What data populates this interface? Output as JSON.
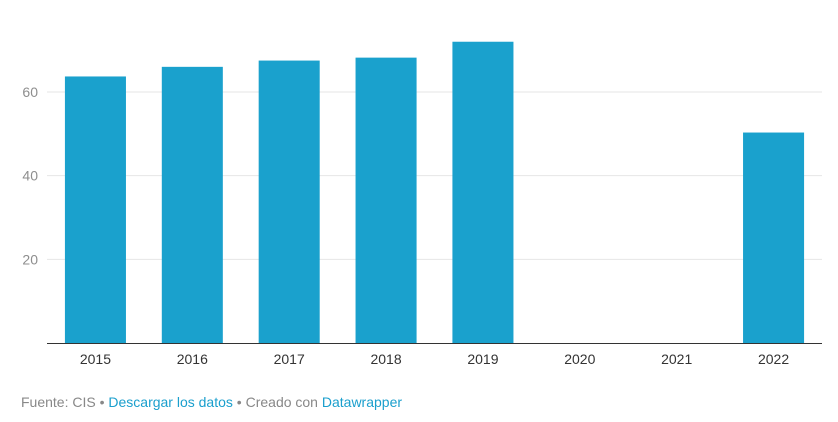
{
  "chart_data": {
    "type": "bar",
    "categories": [
      "2015",
      "2016",
      "2017",
      "2018",
      "2019",
      "2020",
      "2021",
      "2022"
    ],
    "values": [
      63.7,
      66.0,
      67.5,
      68.2,
      72.0,
      null,
      null,
      50.3
    ],
    "title": "",
    "xlabel": "",
    "ylabel": "",
    "ylim": [
      0,
      76
    ],
    "yticks": [
      20,
      40,
      60
    ],
    "grid": true,
    "bar_color": "#1aa1cd"
  },
  "footer": {
    "source": "Fuente: CIS",
    "separator": "•",
    "download_label": "Descargar los datos",
    "created_with": "Creado con",
    "tool_label": "Datawrapper"
  }
}
